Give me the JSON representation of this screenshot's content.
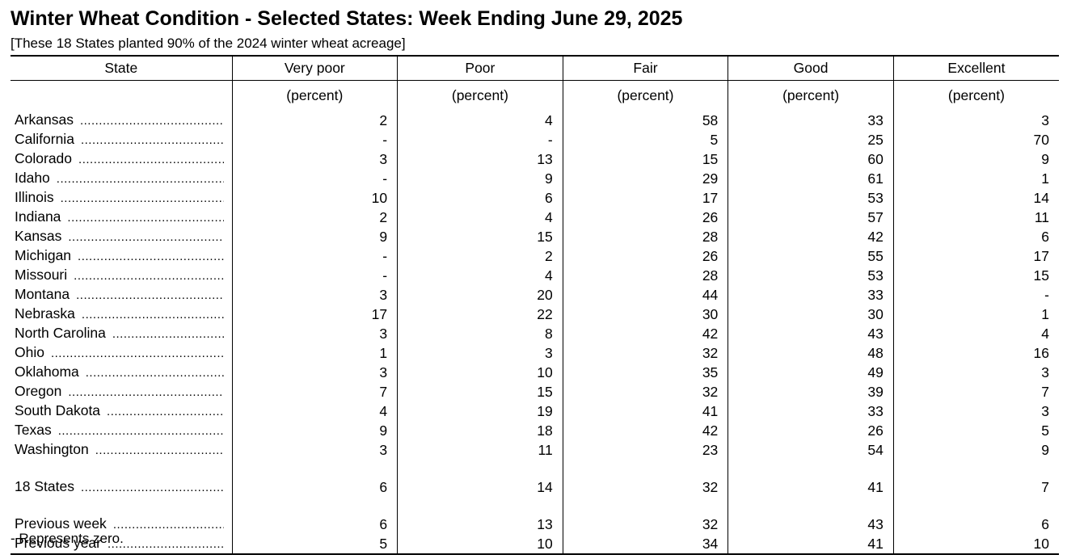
{
  "title": "Winter Wheat Condition - Selected States: Week Ending June 29, 2025",
  "subtitle": "[These 18 States planted 90% of the 2024 winter wheat acreage]",
  "headers": [
    "State",
    "Very poor",
    "Poor",
    "Fair",
    "Good",
    "Excellent"
  ],
  "unit": "(percent)",
  "states": [
    {
      "name": "Arkansas",
      "values": [
        "2",
        "4",
        "58",
        "33",
        "3"
      ]
    },
    {
      "name": "California",
      "values": [
        "-",
        "-",
        "5",
        "25",
        "70"
      ]
    },
    {
      "name": "Colorado",
      "values": [
        "3",
        "13",
        "15",
        "60",
        "9"
      ]
    },
    {
      "name": "Idaho",
      "values": [
        "-",
        "9",
        "29",
        "61",
        "1"
      ]
    },
    {
      "name": "Illinois",
      "values": [
        "10",
        "6",
        "17",
        "53",
        "14"
      ]
    },
    {
      "name": "Indiana",
      "values": [
        "2",
        "4",
        "26",
        "57",
        "11"
      ]
    },
    {
      "name": "Kansas",
      "values": [
        "9",
        "15",
        "28",
        "42",
        "6"
      ]
    },
    {
      "name": "Michigan",
      "values": [
        "-",
        "2",
        "26",
        "55",
        "17"
      ]
    },
    {
      "name": "Missouri",
      "values": [
        "-",
        "4",
        "28",
        "53",
        "15"
      ]
    },
    {
      "name": "Montana",
      "values": [
        "3",
        "20",
        "44",
        "33",
        "-"
      ]
    },
    {
      "name": "Nebraska",
      "values": [
        "17",
        "22",
        "30",
        "30",
        "1"
      ]
    },
    {
      "name": "North Carolina",
      "values": [
        "3",
        "8",
        "42",
        "43",
        "4"
      ]
    },
    {
      "name": "Ohio",
      "values": [
        "1",
        "3",
        "32",
        "48",
        "16"
      ]
    },
    {
      "name": "Oklahoma",
      "values": [
        "3",
        "10",
        "35",
        "49",
        "3"
      ]
    },
    {
      "name": "Oregon",
      "values": [
        "7",
        "15",
        "32",
        "39",
        "7"
      ]
    },
    {
      "name": "South Dakota",
      "values": [
        "4",
        "19",
        "41",
        "33",
        "3"
      ]
    },
    {
      "name": "Texas",
      "values": [
        "9",
        "18",
        "42",
        "26",
        "5"
      ]
    },
    {
      "name": "Washington",
      "values": [
        "3",
        "11",
        "23",
        "54",
        "9"
      ]
    }
  ],
  "total": {
    "name": "18 States",
    "values": [
      "6",
      "14",
      "32",
      "41",
      "7"
    ]
  },
  "comparisons": [
    {
      "name": "Previous week",
      "values": [
        "6",
        "13",
        "32",
        "43",
        "6"
      ]
    },
    {
      "name": "Previous year",
      "values": [
        "5",
        "10",
        "34",
        "41",
        "10"
      ]
    }
  ],
  "footnote": "- Represents zero."
}
